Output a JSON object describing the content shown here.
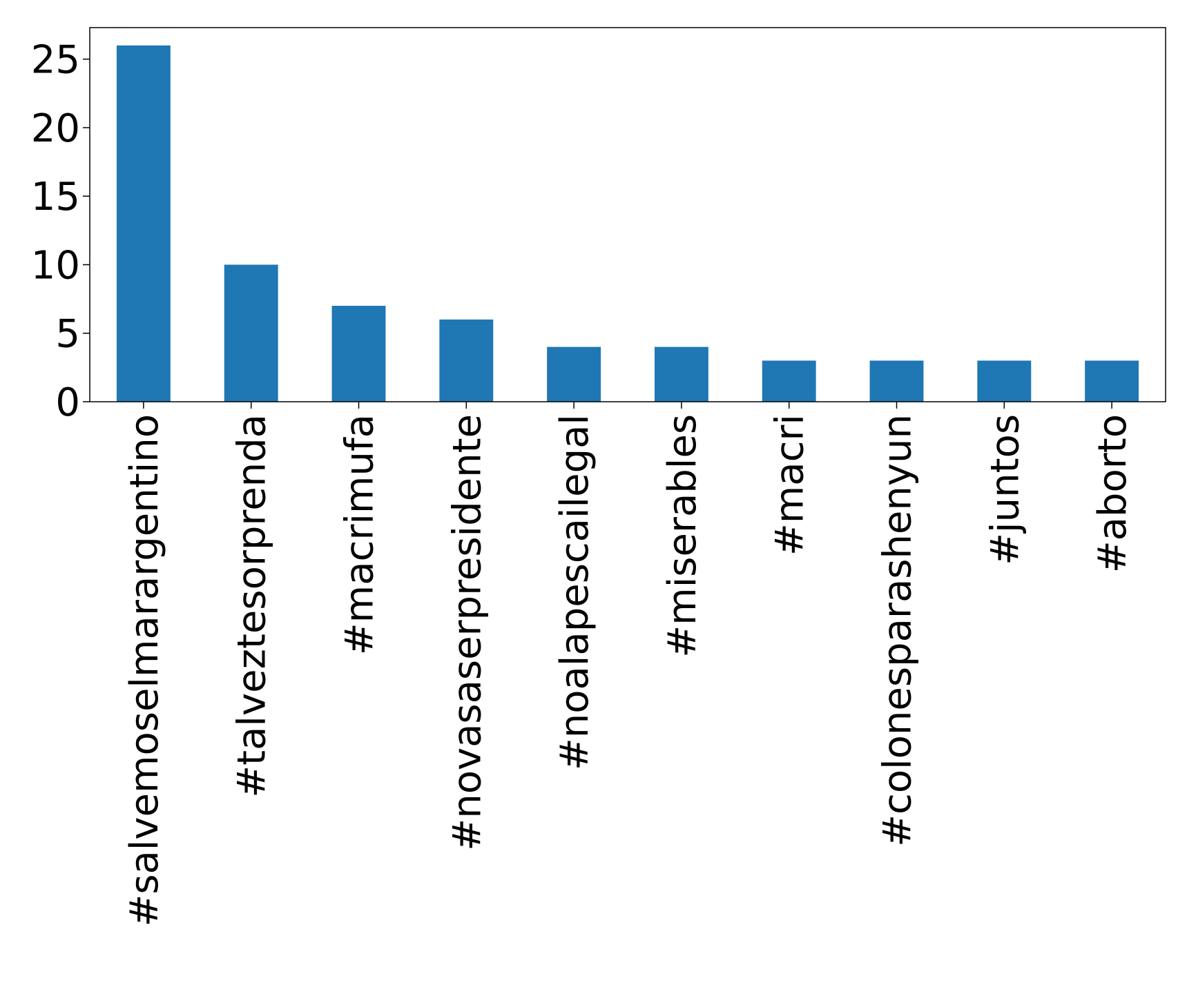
{
  "chart_data": {
    "type": "bar",
    "categories": [
      "#salvemoselmarargentino",
      "#talveztesorprenda",
      "#macrimufa",
      "#novasaserpresidente",
      "#noalapescailegal",
      "#miserables",
      "#macri",
      "#colonesparashenyun",
      "#juntos",
      "#aborto"
    ],
    "values": [
      26,
      10,
      7,
      6,
      4,
      4,
      3,
      3,
      3,
      3
    ],
    "ylim": [
      0,
      27.3
    ],
    "yticks": [
      0,
      5,
      10,
      15,
      20,
      25
    ],
    "title": "",
    "xlabel": "",
    "ylabel": "",
    "grid": false,
    "bar_color": "#1f77b4",
    "axis_color": "#000000"
  }
}
